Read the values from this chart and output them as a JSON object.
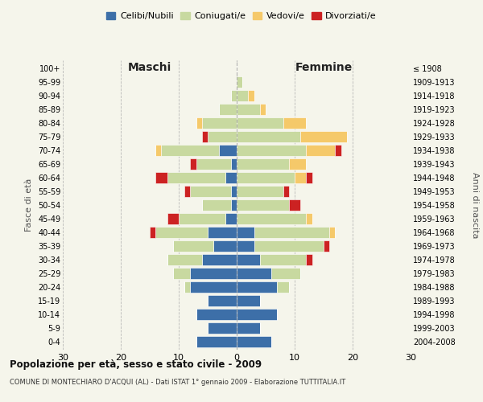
{
  "age_groups": [
    "0-4",
    "5-9",
    "10-14",
    "15-19",
    "20-24",
    "25-29",
    "30-34",
    "35-39",
    "40-44",
    "45-49",
    "50-54",
    "55-59",
    "60-64",
    "65-69",
    "70-74",
    "75-79",
    "80-84",
    "85-89",
    "90-94",
    "95-99",
    "100+"
  ],
  "birth_years": [
    "2004-2008",
    "1999-2003",
    "1994-1998",
    "1989-1993",
    "1984-1988",
    "1979-1983",
    "1974-1978",
    "1969-1973",
    "1964-1968",
    "1959-1963",
    "1954-1958",
    "1949-1953",
    "1944-1948",
    "1939-1943",
    "1934-1938",
    "1929-1933",
    "1924-1928",
    "1919-1923",
    "1914-1918",
    "1909-1913",
    "≤ 1908"
  ],
  "colors": {
    "celibi": "#3d6fa8",
    "coniugati": "#c8d9a0",
    "vedovi": "#f5c96a",
    "divorziati": "#cc2222"
  },
  "maschi": {
    "celibi": [
      7,
      5,
      7,
      5,
      8,
      8,
      6,
      4,
      5,
      2,
      1,
      1,
      2,
      1,
      3,
      0,
      0,
      0,
      0,
      0,
      0
    ],
    "coniugati": [
      0,
      0,
      0,
      0,
      1,
      3,
      6,
      7,
      9,
      8,
      5,
      7,
      10,
      6,
      10,
      5,
      6,
      3,
      1,
      0,
      0
    ],
    "vedovi": [
      0,
      0,
      0,
      0,
      0,
      0,
      0,
      0,
      0,
      0,
      0,
      0,
      0,
      0,
      1,
      0,
      1,
      0,
      0,
      0,
      0
    ],
    "divorziati": [
      0,
      0,
      0,
      0,
      0,
      0,
      0,
      0,
      1,
      2,
      0,
      1,
      2,
      1,
      0,
      1,
      0,
      0,
      0,
      0,
      0
    ]
  },
  "femmine": {
    "nubili": [
      6,
      4,
      7,
      4,
      7,
      6,
      4,
      3,
      3,
      0,
      0,
      0,
      0,
      0,
      0,
      0,
      0,
      0,
      0,
      0,
      0
    ],
    "coniugate": [
      0,
      0,
      0,
      0,
      2,
      5,
      8,
      12,
      13,
      12,
      9,
      8,
      10,
      9,
      12,
      11,
      8,
      4,
      2,
      1,
      0
    ],
    "vedove": [
      0,
      0,
      0,
      0,
      0,
      0,
      0,
      0,
      1,
      1,
      0,
      0,
      2,
      3,
      5,
      8,
      4,
      1,
      1,
      0,
      0
    ],
    "divorziate": [
      0,
      0,
      0,
      0,
      0,
      0,
      1,
      1,
      0,
      0,
      2,
      1,
      1,
      0,
      1,
      0,
      0,
      0,
      0,
      0,
      0
    ]
  },
  "xlim": 30,
  "title": "Popolazione per età, sesso e stato civile - 2009",
  "subtitle": "COMUNE DI MONTECHIARO D'ACQUI (AL) - Dati ISTAT 1° gennaio 2009 - Elaborazione TUTTITALIA.IT",
  "ylabel_left": "Fasce di età",
  "ylabel_right": "Anni di nascita",
  "xlabel_left": "Maschi",
  "xlabel_right": "Femmine",
  "legend_labels": [
    "Celibi/Nubili",
    "Coniugati/e",
    "Vedovi/e",
    "Divorziati/e"
  ],
  "bg_color": "#f5f5eb",
  "bar_height": 0.85
}
